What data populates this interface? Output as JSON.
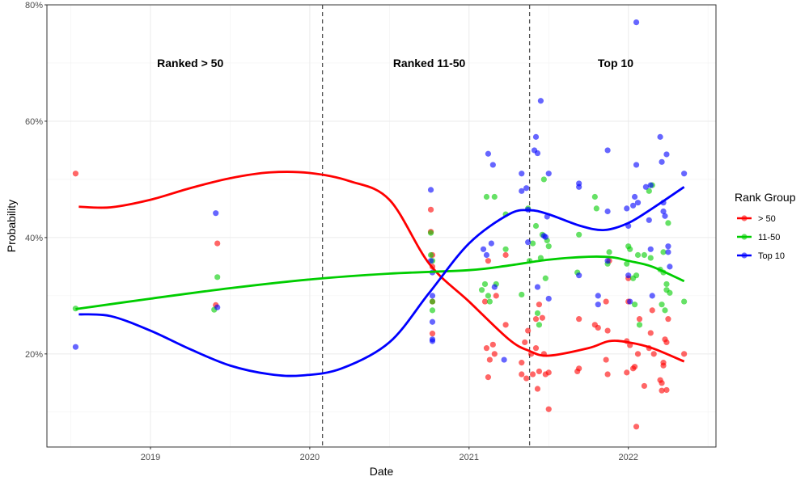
{
  "chart_data": {
    "type": "scatter",
    "title": "",
    "xlabel": "Date",
    "ylabel": "Probability",
    "xlim": [
      2018.35,
      2022.55
    ],
    "ylim": [
      0.04,
      0.8
    ],
    "x_ticks": [
      2019,
      2020,
      2021,
      2022
    ],
    "x_tick_labels": [
      "2019",
      "2020",
      "2021",
      "2022"
    ],
    "y_ticks": [
      0.2,
      0.4,
      0.6,
      0.8
    ],
    "y_tick_labels": [
      "20%",
      "40%",
      "60%",
      "80%"
    ],
    "grid": true,
    "legend_position": "right",
    "legend_title": "Rank Group",
    "vlines": [
      2020.08,
      2021.38
    ],
    "annotations": [
      {
        "text": "Ranked > 50",
        "x": 2019.25,
        "y": 0.7
      },
      {
        "text": "Ranked 11-50",
        "x": 2020.75,
        "y": 0.7
      },
      {
        "text": "Top 10",
        "x": 2021.92,
        "y": 0.7
      }
    ],
    "series": [
      {
        "name": "> 50",
        "color": "#ff0000",
        "points": [
          [
            2018.53,
            0.51
          ],
          [
            2019.41,
            0.284
          ],
          [
            2019.42,
            0.39
          ],
          [
            2020.76,
            0.448
          ],
          [
            2020.76,
            0.41
          ],
          [
            2020.77,
            0.37
          ],
          [
            2020.77,
            0.35
          ],
          [
            2020.77,
            0.29
          ],
          [
            2020.77,
            0.235
          ],
          [
            2021.1,
            0.29
          ],
          [
            2021.11,
            0.21
          ],
          [
            2021.12,
            0.16
          ],
          [
            2021.12,
            0.36
          ],
          [
            2021.13,
            0.19
          ],
          [
            2021.15,
            0.216
          ],
          [
            2021.16,
            0.2
          ],
          [
            2021.17,
            0.3
          ],
          [
            2021.23,
            0.37
          ],
          [
            2021.23,
            0.25
          ],
          [
            2021.33,
            0.185
          ],
          [
            2021.33,
            0.165
          ],
          [
            2021.35,
            0.22
          ],
          [
            2021.36,
            0.158
          ],
          [
            2021.37,
            0.24
          ],
          [
            2021.39,
            0.2
          ],
          [
            2021.4,
            0.165
          ],
          [
            2021.42,
            0.21
          ],
          [
            2021.42,
            0.26
          ],
          [
            2021.43,
            0.14
          ],
          [
            2021.44,
            0.17
          ],
          [
            2021.44,
            0.285
          ],
          [
            2021.46,
            0.262
          ],
          [
            2021.47,
            0.2
          ],
          [
            2021.48,
            0.165
          ],
          [
            2021.5,
            0.105
          ],
          [
            2021.5,
            0.168
          ],
          [
            2021.68,
            0.17
          ],
          [
            2021.69,
            0.26
          ],
          [
            2021.69,
            0.175
          ],
          [
            2021.79,
            0.25
          ],
          [
            2021.81,
            0.245
          ],
          [
            2021.86,
            0.29
          ],
          [
            2021.86,
            0.19
          ],
          [
            2021.87,
            0.165
          ],
          [
            2021.87,
            0.24
          ],
          [
            2021.88,
            0.36
          ],
          [
            2021.99,
            0.222
          ],
          [
            2021.99,
            0.168
          ],
          [
            2022.0,
            0.29
          ],
          [
            2022.0,
            0.33
          ],
          [
            2022.01,
            0.215
          ],
          [
            2022.03,
            0.175
          ],
          [
            2022.04,
            0.178
          ],
          [
            2022.05,
            0.075
          ],
          [
            2022.06,
            0.2
          ],
          [
            2022.07,
            0.26
          ],
          [
            2022.1,
            0.145
          ],
          [
            2022.13,
            0.21
          ],
          [
            2022.14,
            0.236
          ],
          [
            2022.15,
            0.275
          ],
          [
            2022.16,
            0.2
          ],
          [
            2022.2,
            0.155
          ],
          [
            2022.21,
            0.137
          ],
          [
            2022.21,
            0.15
          ],
          [
            2022.22,
            0.185
          ],
          [
            2022.22,
            0.18
          ],
          [
            2022.23,
            0.225
          ],
          [
            2022.24,
            0.138
          ],
          [
            2022.24,
            0.22
          ],
          [
            2022.25,
            0.26
          ],
          [
            2022.35,
            0.2
          ]
        ],
        "trend": [
          [
            2018.55,
            0.453
          ],
          [
            2018.75,
            0.452
          ],
          [
            2019.0,
            0.465
          ],
          [
            2019.25,
            0.485
          ],
          [
            2019.5,
            0.502
          ],
          [
            2019.75,
            0.512
          ],
          [
            2020.0,
            0.511
          ],
          [
            2020.25,
            0.497
          ],
          [
            2020.5,
            0.465
          ],
          [
            2020.75,
            0.355
          ],
          [
            2021.0,
            0.29
          ],
          [
            2021.25,
            0.225
          ],
          [
            2021.38,
            0.205
          ],
          [
            2021.5,
            0.197
          ],
          [
            2021.75,
            0.21
          ],
          [
            2021.88,
            0.222
          ],
          [
            2022.0,
            0.22
          ],
          [
            2022.15,
            0.21
          ],
          [
            2022.35,
            0.187
          ]
        ]
      },
      {
        "name": "11-50",
        "color": "#00cd00",
        "points": [
          [
            2018.53,
            0.278
          ],
          [
            2019.4,
            0.276
          ],
          [
            2019.42,
            0.332
          ],
          [
            2020.76,
            0.408
          ],
          [
            2020.76,
            0.37
          ],
          [
            2020.77,
            0.36
          ],
          [
            2020.77,
            0.29
          ],
          [
            2020.77,
            0.275
          ],
          [
            2021.08,
            0.31
          ],
          [
            2021.1,
            0.32
          ],
          [
            2021.11,
            0.47
          ],
          [
            2021.12,
            0.3
          ],
          [
            2021.13,
            0.29
          ],
          [
            2021.16,
            0.47
          ],
          [
            2021.17,
            0.32
          ],
          [
            2021.23,
            0.44
          ],
          [
            2021.23,
            0.38
          ],
          [
            2021.33,
            0.302
          ],
          [
            2021.37,
            0.45
          ],
          [
            2021.38,
            0.36
          ],
          [
            2021.4,
            0.39
          ],
          [
            2021.42,
            0.42
          ],
          [
            2021.43,
            0.27
          ],
          [
            2021.44,
            0.25
          ],
          [
            2021.45,
            0.365
          ],
          [
            2021.46,
            0.405
          ],
          [
            2021.47,
            0.5
          ],
          [
            2021.48,
            0.33
          ],
          [
            2021.49,
            0.395
          ],
          [
            2021.5,
            0.385
          ],
          [
            2021.68,
            0.34
          ],
          [
            2021.69,
            0.405
          ],
          [
            2021.79,
            0.47
          ],
          [
            2021.8,
            0.45
          ],
          [
            2021.87,
            0.355
          ],
          [
            2021.88,
            0.375
          ],
          [
            2021.99,
            0.355
          ],
          [
            2022.0,
            0.385
          ],
          [
            2022.01,
            0.38
          ],
          [
            2022.03,
            0.33
          ],
          [
            2022.04,
            0.285
          ],
          [
            2022.05,
            0.335
          ],
          [
            2022.06,
            0.37
          ],
          [
            2022.07,
            0.25
          ],
          [
            2022.1,
            0.37
          ],
          [
            2022.13,
            0.48
          ],
          [
            2022.14,
            0.365
          ],
          [
            2022.15,
            0.49
          ],
          [
            2022.2,
            0.345
          ],
          [
            2022.21,
            0.285
          ],
          [
            2022.22,
            0.375
          ],
          [
            2022.22,
            0.34
          ],
          [
            2022.23,
            0.275
          ],
          [
            2022.24,
            0.31
          ],
          [
            2022.24,
            0.32
          ],
          [
            2022.25,
            0.425
          ],
          [
            2022.26,
            0.305
          ],
          [
            2022.35,
            0.29
          ]
        ],
        "trend": [
          [
            2018.53,
            0.277
          ],
          [
            2019.0,
            0.295
          ],
          [
            2019.5,
            0.313
          ],
          [
            2020.0,
            0.328
          ],
          [
            2020.5,
            0.338
          ],
          [
            2021.0,
            0.344
          ],
          [
            2021.25,
            0.352
          ],
          [
            2021.5,
            0.362
          ],
          [
            2021.75,
            0.367
          ],
          [
            2021.9,
            0.366
          ],
          [
            2022.0,
            0.36
          ],
          [
            2022.15,
            0.35
          ],
          [
            2022.35,
            0.325
          ]
        ]
      },
      {
        "name": "Top 10",
        "color": "#0000ff",
        "points": [
          [
            2018.53,
            0.212
          ],
          [
            2019.41,
            0.442
          ],
          [
            2019.42,
            0.28
          ],
          [
            2020.76,
            0.482
          ],
          [
            2020.76,
            0.36
          ],
          [
            2020.77,
            0.34
          ],
          [
            2020.77,
            0.3
          ],
          [
            2020.77,
            0.255
          ],
          [
            2020.77,
            0.225
          ],
          [
            2020.77,
            0.222
          ],
          [
            2021.09,
            0.38
          ],
          [
            2021.11,
            0.37
          ],
          [
            2021.12,
            0.544
          ],
          [
            2021.14,
            0.39
          ],
          [
            2021.15,
            0.525
          ],
          [
            2021.16,
            0.315
          ],
          [
            2021.22,
            0.19
          ],
          [
            2021.33,
            0.51
          ],
          [
            2021.33,
            0.48
          ],
          [
            2021.36,
            0.485
          ],
          [
            2021.37,
            0.392
          ],
          [
            2021.37,
            0.448
          ],
          [
            2021.41,
            0.55
          ],
          [
            2021.42,
            0.573
          ],
          [
            2021.43,
            0.545
          ],
          [
            2021.43,
            0.315
          ],
          [
            2021.45,
            0.635
          ],
          [
            2021.47,
            0.403
          ],
          [
            2021.48,
            0.401
          ],
          [
            2021.49,
            0.436
          ],
          [
            2021.5,
            0.51
          ],
          [
            2021.5,
            0.295
          ],
          [
            2021.69,
            0.493
          ],
          [
            2021.69,
            0.487
          ],
          [
            2021.69,
            0.335
          ],
          [
            2021.81,
            0.3
          ],
          [
            2021.81,
            0.285
          ],
          [
            2021.87,
            0.55
          ],
          [
            2021.87,
            0.445
          ],
          [
            2021.87,
            0.36
          ],
          [
            2021.99,
            0.45
          ],
          [
            2022.0,
            0.42
          ],
          [
            2022.0,
            0.335
          ],
          [
            2022.01,
            0.29
          ],
          [
            2022.03,
            0.455
          ],
          [
            2022.04,
            0.47
          ],
          [
            2022.05,
            0.77
          ],
          [
            2022.05,
            0.525
          ],
          [
            2022.06,
            0.46
          ],
          [
            2022.11,
            0.487
          ],
          [
            2022.13,
            0.43
          ],
          [
            2022.14,
            0.38
          ],
          [
            2022.14,
            0.49
          ],
          [
            2022.15,
            0.3
          ],
          [
            2022.2,
            0.573
          ],
          [
            2022.21,
            0.53
          ],
          [
            2022.22,
            0.445
          ],
          [
            2022.22,
            0.46
          ],
          [
            2022.23,
            0.437
          ],
          [
            2022.24,
            0.543
          ],
          [
            2022.25,
            0.375
          ],
          [
            2022.25,
            0.385
          ],
          [
            2022.26,
            0.35
          ],
          [
            2022.35,
            0.51
          ]
        ],
        "trend": [
          [
            2018.55,
            0.268
          ],
          [
            2018.75,
            0.265
          ],
          [
            2019.0,
            0.24
          ],
          [
            2019.25,
            0.208
          ],
          [
            2019.5,
            0.18
          ],
          [
            2019.75,
            0.165
          ],
          [
            2019.95,
            0.163
          ],
          [
            2020.2,
            0.175
          ],
          [
            2020.5,
            0.22
          ],
          [
            2020.75,
            0.305
          ],
          [
            2021.0,
            0.39
          ],
          [
            2021.25,
            0.44
          ],
          [
            2021.38,
            0.447
          ],
          [
            2021.5,
            0.44
          ],
          [
            2021.7,
            0.42
          ],
          [
            2021.85,
            0.413
          ],
          [
            2022.0,
            0.425
          ],
          [
            2022.15,
            0.45
          ],
          [
            2022.35,
            0.487
          ]
        ]
      }
    ]
  }
}
